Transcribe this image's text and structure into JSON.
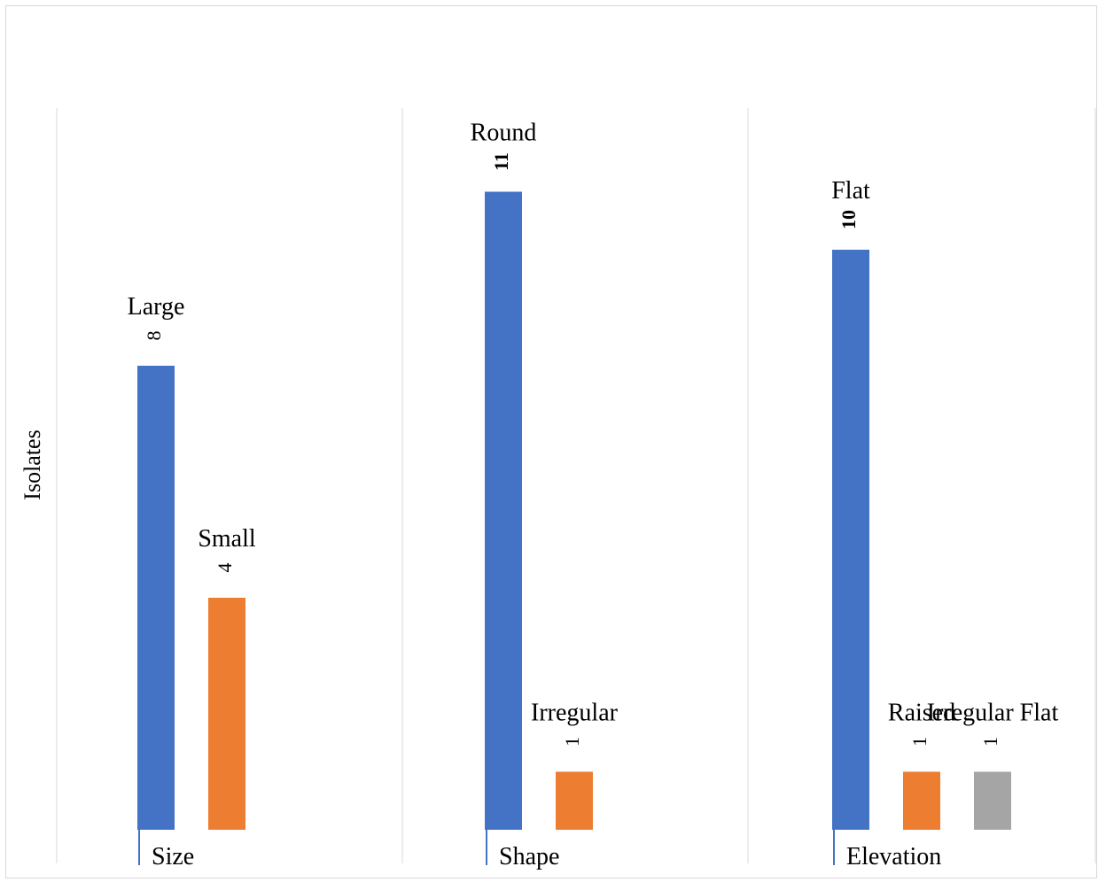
{
  "chart_data": {
    "type": "bar",
    "ylabel": "Isolates",
    "ylim": [
      0,
      12
    ],
    "colors": [
      "#4472c4",
      "#ed7d31",
      "#a5a5a5"
    ],
    "groups": [
      {
        "name": "Size",
        "bars": [
          {
            "label": "Large",
            "value": 8,
            "data_label": "8",
            "color": "#4472c4"
          },
          {
            "label": "Small",
            "value": 4,
            "data_label": "4",
            "color": "#ed7d31"
          }
        ]
      },
      {
        "name": "Shape",
        "bars": [
          {
            "label": "Round",
            "value": 11,
            "data_label": "11",
            "color": "#4472c4"
          },
          {
            "label": "Irregular",
            "value": 1,
            "data_label": "1",
            "color": "#ed7d31"
          }
        ]
      },
      {
        "name": "Elevation",
        "bars": [
          {
            "label": "Flat",
            "value": 10,
            "data_label": "10",
            "color": "#4472c4"
          },
          {
            "label": "Raised",
            "value": 1,
            "data_label": "1",
            "color": "#ed7d31"
          },
          {
            "label": "Irregular Flat",
            "value": 1,
            "data_label": "1",
            "color": "#a5a5a5"
          }
        ]
      }
    ]
  }
}
